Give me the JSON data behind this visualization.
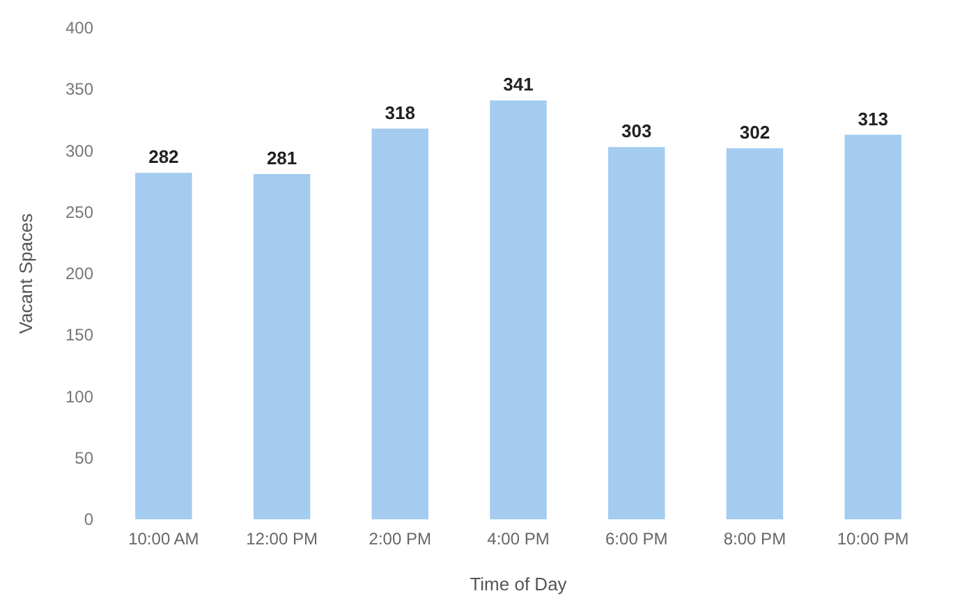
{
  "chart_data": {
    "type": "bar",
    "xlabel": "Time of Day",
    "ylabel": "Vacant Spaces",
    "categories": [
      "10:00 AM",
      "12:00 PM",
      "2:00 PM",
      "4:00 PM",
      "6:00 PM",
      "8:00 PM",
      "10:00 PM"
    ],
    "values": [
      282,
      281,
      318,
      341,
      303,
      302,
      313
    ],
    "color": "#a4ccf0",
    "ylim": [
      0,
      400
    ],
    "yticks": [
      0,
      50,
      100,
      150,
      200,
      250,
      300,
      350,
      400
    ],
    "grid": false,
    "data_labels": true
  }
}
